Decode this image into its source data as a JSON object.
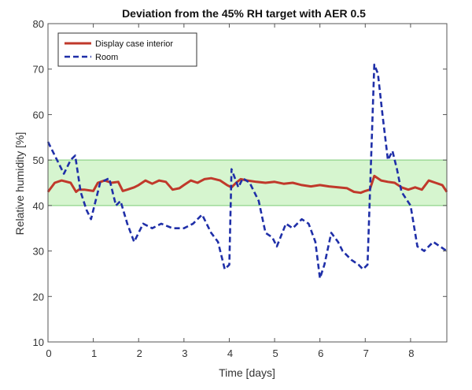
{
  "chart_data": {
    "type": "line",
    "title": "Deviation from the 45% RH target with AER 0.5",
    "xlabel": "Time [days]",
    "ylabel": "Relative humidity [%]",
    "xlim": [
      0,
      8.8
    ],
    "ylim": [
      10,
      80
    ],
    "xticks": [
      0,
      1,
      2,
      3,
      4,
      5,
      6,
      7,
      8
    ],
    "yticks": [
      10,
      20,
      30,
      40,
      50,
      60,
      70,
      80
    ],
    "target_band": {
      "low": 40,
      "high": 50,
      "color": "#d6f5cf",
      "edge_color": "#8fd38a"
    },
    "grid": false,
    "legend_position": "top-left",
    "series": [
      {
        "name": "Display case interior",
        "color": "#c0392b",
        "style": "solid",
        "x": [
          0,
          0.15,
          0.3,
          0.5,
          0.62,
          0.68,
          0.8,
          1.0,
          1.1,
          1.25,
          1.4,
          1.55,
          1.65,
          1.75,
          1.9,
          2.0,
          2.15,
          2.3,
          2.45,
          2.6,
          2.75,
          2.9,
          3.0,
          3.15,
          3.3,
          3.45,
          3.6,
          3.8,
          3.95,
          4.05,
          4.15,
          4.25,
          4.4,
          4.6,
          4.8,
          5.0,
          5.2,
          5.4,
          5.6,
          5.8,
          6.0,
          6.2,
          6.4,
          6.6,
          6.75,
          6.9,
          7.0,
          7.1,
          7.2,
          7.35,
          7.5,
          7.65,
          7.8,
          7.95,
          8.1,
          8.25,
          8.4,
          8.55,
          8.7,
          8.8
        ],
        "y": [
          43,
          45,
          45.5,
          45,
          43,
          43.5,
          43.5,
          43.2,
          45,
          45.5,
          45,
          45.2,
          43.2,
          43.5,
          44,
          44.5,
          45.5,
          44.8,
          45.5,
          45.2,
          43.5,
          43.8,
          44.5,
          45.5,
          45,
          45.8,
          46,
          45.5,
          44.5,
          44,
          45,
          45.8,
          45.5,
          45.2,
          45,
          45.2,
          44.8,
          45,
          44.5,
          44.2,
          44.5,
          44.2,
          44,
          43.8,
          43,
          42.8,
          43.2,
          43.5,
          46.5,
          45.5,
          45.2,
          45,
          44,
          43.5,
          44,
          43.5,
          45.5,
          45,
          44.5,
          43
        ]
      },
      {
        "name": "Room",
        "color": "#1f2fa8",
        "style": "dashed",
        "x": [
          0,
          0.2,
          0.35,
          0.5,
          0.6,
          0.72,
          0.85,
          0.95,
          1.05,
          1.15,
          1.35,
          1.5,
          1.6,
          1.75,
          1.9,
          2.0,
          2.1,
          2.3,
          2.5,
          2.75,
          3.0,
          3.2,
          3.4,
          3.6,
          3.75,
          3.9,
          4.0,
          4.05,
          4.2,
          4.3,
          4.45,
          4.65,
          4.8,
          4.95,
          5.05,
          5.25,
          5.4,
          5.6,
          5.75,
          5.9,
          6.0,
          6.1,
          6.25,
          6.4,
          6.5,
          6.7,
          6.85,
          6.95,
          7.05,
          7.2,
          7.28,
          7.38,
          7.5,
          7.6,
          7.7,
          7.8,
          8.0,
          8.15,
          8.3,
          8.5,
          8.65,
          8.8
        ],
        "y": [
          54,
          50,
          47,
          50,
          51,
          43,
          39,
          37,
          41,
          45,
          46,
          40,
          41,
          36,
          32,
          34,
          36,
          35,
          36,
          35,
          35,
          36,
          38,
          34,
          32,
          26,
          27,
          48,
          44,
          46,
          45,
          41,
          34,
          33,
          31,
          36,
          35,
          37,
          36,
          32,
          24,
          27,
          34,
          32,
          30,
          28,
          27,
          26,
          27,
          71,
          69,
          60,
          50,
          52,
          48,
          43,
          40,
          31,
          30,
          32,
          31,
          30
        ]
      }
    ]
  }
}
